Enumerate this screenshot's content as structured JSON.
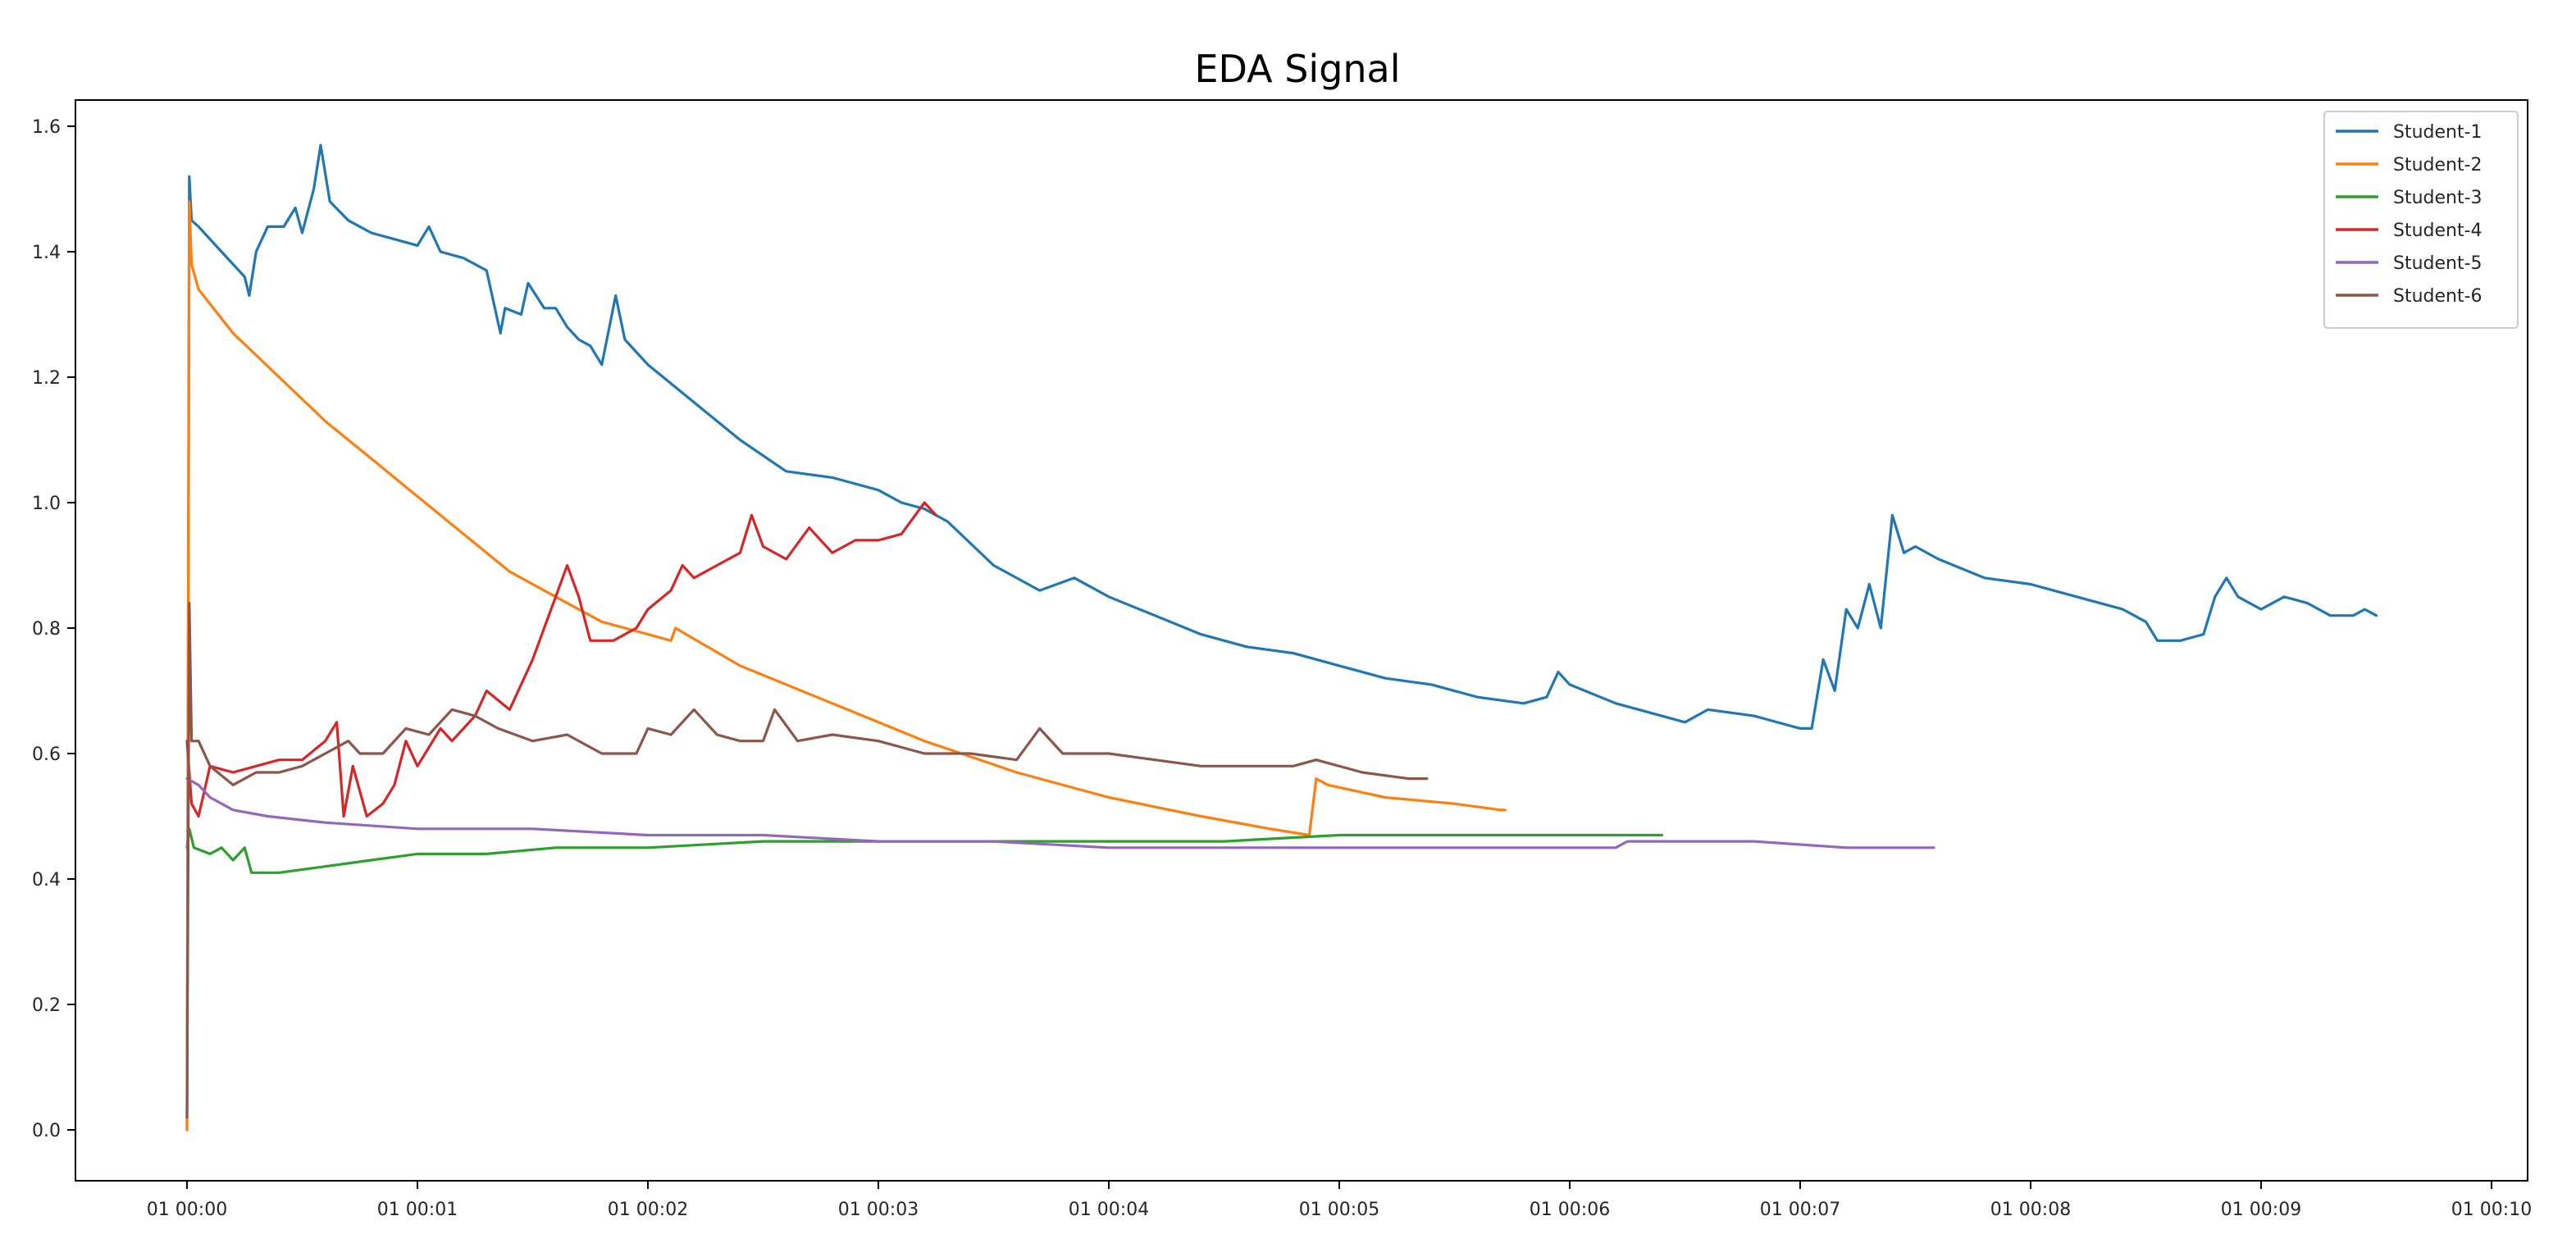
{
  "chart_data": {
    "type": "line",
    "title": "EDA Signal",
    "xlabel": "",
    "ylabel": "",
    "x_ticks": [
      "01 00:00",
      "01 00:01",
      "01 00:02",
      "01 00:03",
      "01 00:04",
      "01 00:05",
      "01 00:06",
      "01 00:07",
      "01 00:08",
      "01 00:09",
      "01 00:10"
    ],
    "x_unit": "minutes after 01 00:00",
    "xlim": [
      -0.5,
      10.0
    ],
    "y_ticks": [
      "0.0",
      "0.2",
      "0.4",
      "0.6",
      "0.8",
      "1.0",
      "1.2",
      "1.4",
      "1.6"
    ],
    "ylim": [
      -0.08,
      1.65
    ],
    "grid": false,
    "legend_position": "top-right",
    "series": [
      {
        "name": "Student-1",
        "color": "#1f77b4",
        "points": [
          [
            0,
            0.0
          ],
          [
            0.01,
            1.52
          ],
          [
            0.02,
            1.45
          ],
          [
            0.05,
            1.44
          ],
          [
            0.15,
            1.4
          ],
          [
            0.25,
            1.36
          ],
          [
            0.27,
            1.33
          ],
          [
            0.3,
            1.4
          ],
          [
            0.35,
            1.44
          ],
          [
            0.42,
            1.44
          ],
          [
            0.47,
            1.47
          ],
          [
            0.5,
            1.43
          ],
          [
            0.55,
            1.5
          ],
          [
            0.58,
            1.57
          ],
          [
            0.62,
            1.48
          ],
          [
            0.7,
            1.45
          ],
          [
            0.8,
            1.43
          ],
          [
            0.9,
            1.42
          ],
          [
            1.0,
            1.41
          ],
          [
            1.05,
            1.44
          ],
          [
            1.1,
            1.4
          ],
          [
            1.2,
            1.39
          ],
          [
            1.3,
            1.37
          ],
          [
            1.36,
            1.27
          ],
          [
            1.38,
            1.31
          ],
          [
            1.45,
            1.3
          ],
          [
            1.48,
            1.35
          ],
          [
            1.55,
            1.31
          ],
          [
            1.6,
            1.31
          ],
          [
            1.65,
            1.28
          ],
          [
            1.7,
            1.26
          ],
          [
            1.75,
            1.25
          ],
          [
            1.8,
            1.22
          ],
          [
            1.86,
            1.33
          ],
          [
            1.9,
            1.26
          ],
          [
            2.0,
            1.22
          ],
          [
            2.2,
            1.16
          ],
          [
            2.4,
            1.1
          ],
          [
            2.6,
            1.05
          ],
          [
            2.8,
            1.04
          ],
          [
            2.9,
            1.03
          ],
          [
            3.0,
            1.02
          ],
          [
            3.1,
            1.0
          ],
          [
            3.2,
            0.99
          ],
          [
            3.25,
            0.98
          ],
          [
            3.3,
            0.97
          ],
          [
            3.5,
            0.9
          ],
          [
            3.7,
            0.86
          ],
          [
            3.85,
            0.88
          ],
          [
            4.0,
            0.85
          ],
          [
            4.2,
            0.82
          ],
          [
            4.4,
            0.79
          ],
          [
            4.6,
            0.77
          ],
          [
            4.8,
            0.76
          ],
          [
            5.0,
            0.74
          ],
          [
            5.2,
            0.72
          ],
          [
            5.4,
            0.71
          ],
          [
            5.6,
            0.69
          ],
          [
            5.8,
            0.68
          ],
          [
            5.9,
            0.69
          ],
          [
            5.95,
            0.73
          ],
          [
            6.0,
            0.71
          ],
          [
            6.2,
            0.68
          ],
          [
            6.5,
            0.65
          ],
          [
            6.6,
            0.67
          ],
          [
            6.8,
            0.66
          ],
          [
            7.0,
            0.64
          ],
          [
            7.05,
            0.64
          ],
          [
            7.1,
            0.75
          ],
          [
            7.15,
            0.7
          ],
          [
            7.2,
            0.83
          ],
          [
            7.25,
            0.8
          ],
          [
            7.3,
            0.87
          ],
          [
            7.35,
            0.8
          ],
          [
            7.4,
            0.98
          ],
          [
            7.45,
            0.92
          ],
          [
            7.5,
            0.93
          ],
          [
            7.6,
            0.91
          ],
          [
            7.8,
            0.88
          ],
          [
            8.0,
            0.87
          ],
          [
            8.2,
            0.85
          ],
          [
            8.4,
            0.83
          ],
          [
            8.5,
            0.81
          ],
          [
            8.55,
            0.78
          ],
          [
            8.65,
            0.78
          ],
          [
            8.75,
            0.79
          ],
          [
            8.8,
            0.85
          ],
          [
            8.85,
            0.88
          ],
          [
            8.9,
            0.85
          ],
          [
            9.0,
            0.83
          ],
          [
            9.1,
            0.85
          ],
          [
            9.2,
            0.84
          ],
          [
            9.3,
            0.82
          ],
          [
            9.4,
            0.82
          ],
          [
            9.45,
            0.83
          ],
          [
            9.5,
            0.82
          ]
        ]
      },
      {
        "name": "Student-2",
        "color": "#ff7f0e",
        "points": [
          [
            0,
            0.0
          ],
          [
            0.01,
            1.48
          ],
          [
            0.02,
            1.38
          ],
          [
            0.05,
            1.34
          ],
          [
            0.2,
            1.27
          ],
          [
            0.4,
            1.2
          ],
          [
            0.6,
            1.13
          ],
          [
            0.8,
            1.07
          ],
          [
            1.0,
            1.01
          ],
          [
            1.2,
            0.95
          ],
          [
            1.4,
            0.89
          ],
          [
            1.6,
            0.85
          ],
          [
            1.8,
            0.81
          ],
          [
            2.0,
            0.79
          ],
          [
            2.1,
            0.78
          ],
          [
            2.12,
            0.8
          ],
          [
            2.4,
            0.74
          ],
          [
            2.8,
            0.68
          ],
          [
            3.2,
            0.62
          ],
          [
            3.6,
            0.57
          ],
          [
            4.0,
            0.53
          ],
          [
            4.4,
            0.5
          ],
          [
            4.7,
            0.48
          ],
          [
            4.87,
            0.47
          ],
          [
            4.9,
            0.56
          ],
          [
            4.95,
            0.55
          ],
          [
            5.2,
            0.53
          ],
          [
            5.5,
            0.52
          ],
          [
            5.7,
            0.51
          ],
          [
            5.72,
            0.51
          ]
        ]
      },
      {
        "name": "Student-3",
        "color": "#2ca02c",
        "points": [
          [
            0,
            0.45
          ],
          [
            0.01,
            0.48
          ],
          [
            0.03,
            0.45
          ],
          [
            0.1,
            0.44
          ],
          [
            0.15,
            0.45
          ],
          [
            0.2,
            0.43
          ],
          [
            0.25,
            0.45
          ],
          [
            0.28,
            0.41
          ],
          [
            0.4,
            0.41
          ],
          [
            0.6,
            0.42
          ],
          [
            0.8,
            0.43
          ],
          [
            1.0,
            0.44
          ],
          [
            1.3,
            0.44
          ],
          [
            1.6,
            0.45
          ],
          [
            2.0,
            0.45
          ],
          [
            2.5,
            0.46
          ],
          [
            3.0,
            0.46
          ],
          [
            3.5,
            0.46
          ],
          [
            4.0,
            0.46
          ],
          [
            4.5,
            0.46
          ],
          [
            5.0,
            0.47
          ],
          [
            5.5,
            0.47
          ],
          [
            6.0,
            0.47
          ],
          [
            6.4,
            0.47
          ]
        ]
      },
      {
        "name": "Student-4",
        "color": "#d62728",
        "points": [
          [
            0,
            0.62
          ],
          [
            0.02,
            0.52
          ],
          [
            0.05,
            0.5
          ],
          [
            0.1,
            0.58
          ],
          [
            0.2,
            0.57
          ],
          [
            0.3,
            0.58
          ],
          [
            0.4,
            0.59
          ],
          [
            0.5,
            0.59
          ],
          [
            0.6,
            0.62
          ],
          [
            0.65,
            0.65
          ],
          [
            0.68,
            0.5
          ],
          [
            0.72,
            0.58
          ],
          [
            0.78,
            0.5
          ],
          [
            0.85,
            0.52
          ],
          [
            0.9,
            0.55
          ],
          [
            0.95,
            0.62
          ],
          [
            1.0,
            0.58
          ],
          [
            1.1,
            0.64
          ],
          [
            1.15,
            0.62
          ],
          [
            1.25,
            0.66
          ],
          [
            1.3,
            0.7
          ],
          [
            1.4,
            0.67
          ],
          [
            1.5,
            0.75
          ],
          [
            1.55,
            0.8
          ],
          [
            1.6,
            0.85
          ],
          [
            1.65,
            0.9
          ],
          [
            1.7,
            0.85
          ],
          [
            1.75,
            0.78
          ],
          [
            1.85,
            0.78
          ],
          [
            1.95,
            0.8
          ],
          [
            2.0,
            0.83
          ],
          [
            2.1,
            0.86
          ],
          [
            2.15,
            0.9
          ],
          [
            2.2,
            0.88
          ],
          [
            2.3,
            0.9
          ],
          [
            2.4,
            0.92
          ],
          [
            2.45,
            0.98
          ],
          [
            2.5,
            0.93
          ],
          [
            2.6,
            0.91
          ],
          [
            2.7,
            0.96
          ],
          [
            2.8,
            0.92
          ],
          [
            2.9,
            0.94
          ],
          [
            3.0,
            0.94
          ],
          [
            3.1,
            0.95
          ],
          [
            3.2,
            1.0
          ],
          [
            3.25,
            0.98
          ]
        ]
      },
      {
        "name": "Student-5",
        "color": "#9467bd",
        "points": [
          [
            0,
            0.56
          ],
          [
            0.05,
            0.55
          ],
          [
            0.1,
            0.53
          ],
          [
            0.2,
            0.51
          ],
          [
            0.35,
            0.5
          ],
          [
            0.6,
            0.49
          ],
          [
            1.0,
            0.48
          ],
          [
            1.5,
            0.48
          ],
          [
            2.0,
            0.47
          ],
          [
            2.5,
            0.47
          ],
          [
            3.0,
            0.46
          ],
          [
            3.5,
            0.46
          ],
          [
            4.0,
            0.45
          ],
          [
            4.5,
            0.45
          ],
          [
            5.0,
            0.45
          ],
          [
            5.5,
            0.45
          ],
          [
            6.0,
            0.45
          ],
          [
            6.2,
            0.45
          ],
          [
            6.25,
            0.46
          ],
          [
            6.8,
            0.46
          ],
          [
            7.2,
            0.45
          ],
          [
            7.5,
            0.45
          ],
          [
            7.58,
            0.45
          ]
        ]
      },
      {
        "name": "Student-6",
        "color": "#8c564b",
        "points": [
          [
            0,
            0.02
          ],
          [
            0.01,
            0.84
          ],
          [
            0.02,
            0.62
          ],
          [
            0.05,
            0.62
          ],
          [
            0.1,
            0.58
          ],
          [
            0.2,
            0.55
          ],
          [
            0.3,
            0.57
          ],
          [
            0.4,
            0.57
          ],
          [
            0.5,
            0.58
          ],
          [
            0.6,
            0.6
          ],
          [
            0.7,
            0.62
          ],
          [
            0.75,
            0.6
          ],
          [
            0.85,
            0.6
          ],
          [
            0.95,
            0.64
          ],
          [
            1.05,
            0.63
          ],
          [
            1.15,
            0.67
          ],
          [
            1.25,
            0.66
          ],
          [
            1.35,
            0.64
          ],
          [
            1.5,
            0.62
          ],
          [
            1.65,
            0.63
          ],
          [
            1.8,
            0.6
          ],
          [
            1.95,
            0.6
          ],
          [
            2.0,
            0.64
          ],
          [
            2.1,
            0.63
          ],
          [
            2.2,
            0.67
          ],
          [
            2.3,
            0.63
          ],
          [
            2.4,
            0.62
          ],
          [
            2.5,
            0.62
          ],
          [
            2.55,
            0.67
          ],
          [
            2.65,
            0.62
          ],
          [
            2.8,
            0.63
          ],
          [
            3.0,
            0.62
          ],
          [
            3.2,
            0.6
          ],
          [
            3.4,
            0.6
          ],
          [
            3.6,
            0.59
          ],
          [
            3.7,
            0.64
          ],
          [
            3.8,
            0.6
          ],
          [
            4.0,
            0.6
          ],
          [
            4.2,
            0.59
          ],
          [
            4.4,
            0.58
          ],
          [
            4.6,
            0.58
          ],
          [
            4.8,
            0.58
          ],
          [
            4.9,
            0.59
          ],
          [
            5.1,
            0.57
          ],
          [
            5.3,
            0.56
          ],
          [
            5.38,
            0.56
          ]
        ]
      }
    ]
  }
}
